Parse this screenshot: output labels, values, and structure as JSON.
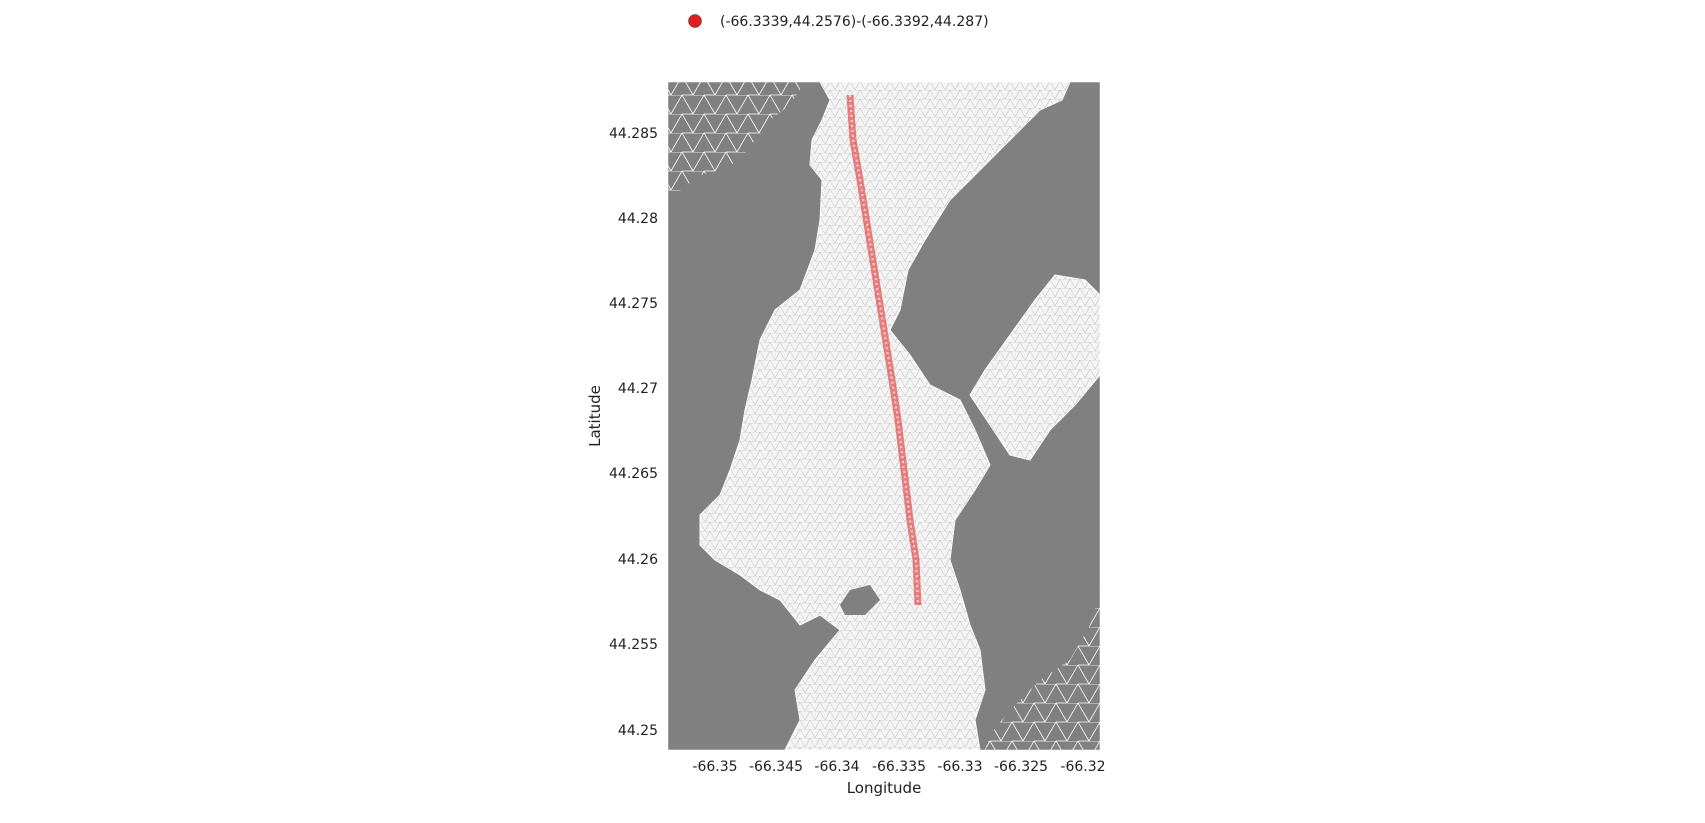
{
  "legend": {
    "label": "(-66.3339,44.2576)-(-66.3392,44.287)",
    "color": "#e02020"
  },
  "axes": {
    "xlabel": "Longitude",
    "ylabel": "Latitude",
    "xticks": [
      "-66.35",
      "-66.345",
      "-66.34",
      "-66.335",
      "-66.33",
      "-66.325",
      "-66.32"
    ],
    "yticks": [
      "44.285",
      "44.28",
      "44.275",
      "44.27",
      "44.265",
      "44.26",
      "44.255",
      "44.25"
    ]
  },
  "colors": {
    "water": "#808080",
    "land": "#f4f4f4",
    "mesh": "#b8b8b8",
    "transect": "#e02020"
  },
  "transect": {
    "start": [
      -66.3339,
      44.2576
    ],
    "end": [
      -66.3392,
      44.287
    ]
  }
}
